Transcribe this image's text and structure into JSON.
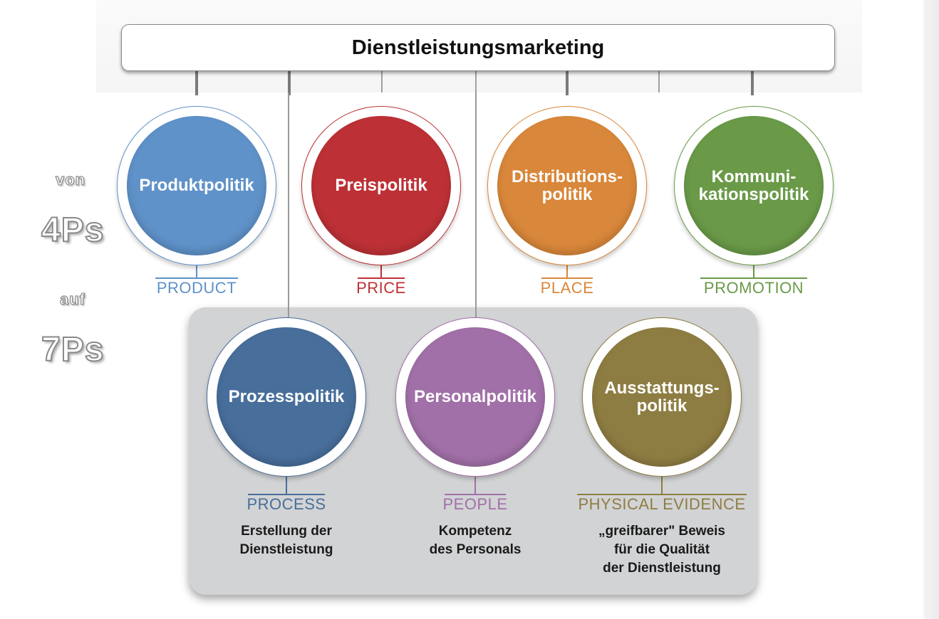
{
  "title": "Dienstleistungsmarketing",
  "side": {
    "von": "von",
    "four_ps": "4Ps",
    "auf": "auf",
    "seven_ps": "7Ps"
  },
  "circles": [
    {
      "id": "product",
      "label": "Produktpolitik",
      "p": "PRODUCT",
      "color": "#5f92c9",
      "desc": ""
    },
    {
      "id": "price",
      "label": "Preispolitik",
      "p": "PRICE",
      "color": "#bd3136",
      "desc": ""
    },
    {
      "id": "place",
      "label": "Distributions-\npolitik",
      "p": "PLACE",
      "color": "#d9873a",
      "desc": ""
    },
    {
      "id": "promotion",
      "label": "Kommuni-\nkationspolitik",
      "p": "PROMOTION",
      "color": "#6a9a48",
      "desc": ""
    },
    {
      "id": "process",
      "label": "Prozesspolitik",
      "p": "PROCESS",
      "color": "#486e9b",
      "desc": "Erstellung der\nDienstleistung"
    },
    {
      "id": "people",
      "label": "Personalpolitik",
      "p": "PEOPLE",
      "color": "#a170a8",
      "desc": "Kompetenz\ndes Personals"
    },
    {
      "id": "physical",
      "label": "Ausstattungs-\npolitik",
      "p": "PHYSICAL EVIDENCE",
      "color": "#8e7d42",
      "desc": "„greifbarer\" Beweis\nfür die Qualität\nder Dienstleistung"
    }
  ]
}
